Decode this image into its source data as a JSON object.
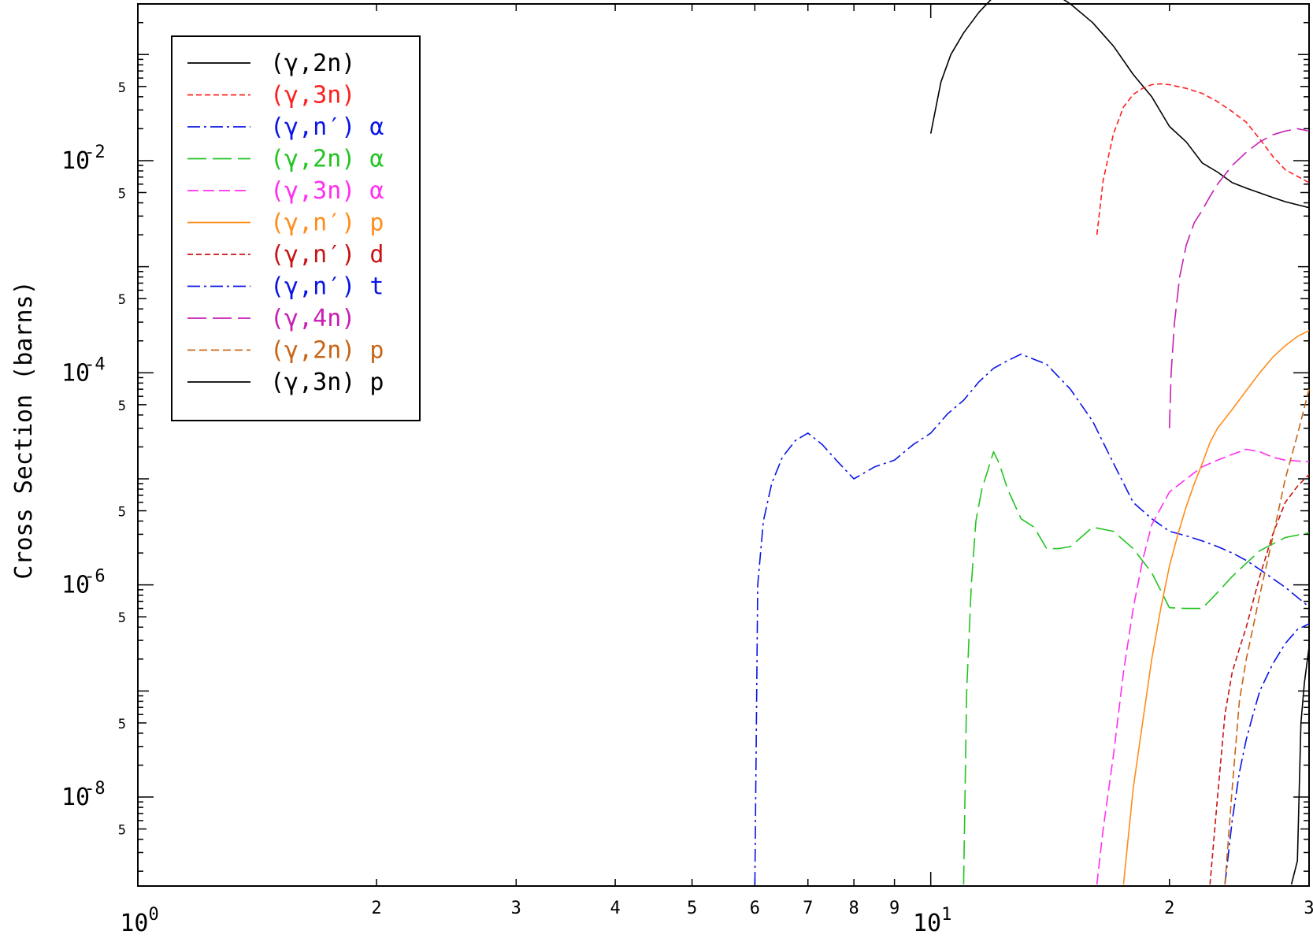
{
  "chart_data": {
    "type": "line",
    "title": "",
    "xlabel": "",
    "ylabel": "Cross Section (barns)",
    "x_scale": "log",
    "y_scale": "log",
    "xlim": [
      1,
      30
    ],
    "ylim": [
      1.45e-09,
      0.3
    ],
    "x_ticks": [
      {
        "value": 1,
        "base": "10",
        "exp": "0"
      },
      {
        "value": 2,
        "label": "2"
      },
      {
        "value": 3,
        "label": "3"
      },
      {
        "value": 4,
        "label": "4"
      },
      {
        "value": 5,
        "label": "5"
      },
      {
        "value": 6,
        "label": "6"
      },
      {
        "value": 7,
        "label": "7"
      },
      {
        "value": 8,
        "label": "8"
      },
      {
        "value": 9,
        "label": "9"
      },
      {
        "value": 10,
        "base": "10",
        "exp": "1"
      },
      {
        "value": 20,
        "label": "2"
      },
      {
        "value": 30,
        "label": "3"
      }
    ],
    "y_ticks": [
      {
        "value": 0.01,
        "base": "10",
        "exp": "-2"
      },
      {
        "value": 0.0001,
        "base": "10",
        "exp": "-4"
      },
      {
        "value": 1e-06,
        "base": "10",
        "exp": "-6"
      },
      {
        "value": 1e-08,
        "base": "10",
        "exp": "-8"
      }
    ],
    "y_minor_label": "5",
    "y_minor_label_values": [
      0.5,
      0.05,
      0.005,
      0.0005,
      5e-05,
      5e-06,
      5e-07,
      5e-08,
      5e-09
    ],
    "legend_position": "top-left",
    "series": [
      {
        "name": "(γ,2n)",
        "suffix": "",
        "color": "#000000",
        "dash": "solid",
        "x": [
          10,
          10.3,
          10.6,
          11,
          11.5,
          12,
          12.5,
          13,
          13.5,
          14,
          15,
          16,
          17,
          18,
          19,
          20,
          21,
          22,
          23,
          24,
          25,
          27,
          28,
          30
        ],
        "y": [
          0.018,
          0.055,
          0.1,
          0.16,
          0.25,
          0.35,
          0.45,
          0.48,
          0.47,
          0.42,
          0.3,
          0.2,
          0.12,
          0.065,
          0.04,
          0.021,
          0.015,
          0.0095,
          0.0078,
          0.0062,
          0.0055,
          0.0045,
          0.0041,
          0.0036
        ]
      },
      {
        "name": "(γ,3n)",
        "suffix": "",
        "color": "#ff1f1f",
        "dash": "short",
        "x": [
          16.2,
          16.5,
          17,
          17.5,
          18,
          18.5,
          19,
          19.5,
          20,
          21,
          22,
          23,
          24,
          25,
          26,
          27,
          28,
          30
        ],
        "y": [
          0.002,
          0.0065,
          0.018,
          0.032,
          0.042,
          0.048,
          0.052,
          0.053,
          0.052,
          0.048,
          0.043,
          0.036,
          0.029,
          0.023,
          0.016,
          0.011,
          0.0082,
          0.0062
        ]
      },
      {
        "name": "(γ,n′)",
        "suffix": " α",
        "color": "#0a14e6",
        "dash": "dashdot",
        "x": [
          6,
          6.05,
          6.15,
          6.3,
          6.5,
          6.75,
          7,
          7.3,
          7.6,
          8,
          8.5,
          9,
          9.5,
          10,
          10.5,
          11,
          11.5,
          12,
          12.5,
          13,
          14,
          15,
          16,
          17,
          18,
          19,
          20,
          21,
          22,
          23,
          24,
          25,
          26,
          28,
          30
        ],
        "y": [
          1.5e-09,
          1e-06,
          4e-06,
          9e-06,
          1.6e-05,
          2.3e-05,
          2.7e-05,
          2.1e-05,
          1.5e-05,
          1e-05,
          1.3e-05,
          1.5e-05,
          2.1e-05,
          2.7e-05,
          4.1e-05,
          5.5e-05,
          8.2e-05,
          0.00011,
          0.00013,
          0.00015,
          0.00012,
          7e-05,
          3.5e-05,
          1.4e-05,
          6e-06,
          4.2e-06,
          3.2e-06,
          2.9e-06,
          2.6e-06,
          2.3e-06,
          2e-06,
          1.7e-06,
          1.4e-06,
          9.5e-07,
          6.2e-07
        ]
      },
      {
        "name": "(γ,2n)",
        "suffix": " α",
        "color": "#22c422",
        "dash": "long",
        "x": [
          11,
          11.1,
          11.25,
          11.4,
          11.6,
          11.8,
          12,
          12.2,
          12.5,
          13,
          13.5,
          14,
          14.5,
          15,
          16,
          17,
          18,
          19,
          20,
          21,
          22,
          23,
          24,
          25,
          26,
          28,
          30
        ],
        "y": [
          1.5e-09,
          1e-07,
          1e-06,
          4e-06,
          8e-06,
          1.2e-05,
          1.8e-05,
          1.4e-05,
          8e-06,
          4.2e-06,
          3.5e-06,
          2.2e-06,
          2.2e-06,
          2.3e-06,
          3.5e-06,
          3.2e-06,
          2.2e-06,
          1.3e-06,
          6.1e-07,
          6e-07,
          6e-07,
          8.5e-07,
          1.2e-06,
          1.6e-06,
          2.1e-06,
          2.8e-06,
          3.1e-06
        ]
      },
      {
        "name": "(γ,3n)",
        "suffix": " α",
        "color": "#ff2ef0",
        "dash": "dash",
        "x": [
          16.2,
          16.5,
          17,
          17.5,
          18,
          18.5,
          19,
          20,
          21,
          22,
          23,
          24,
          25,
          26,
          27,
          28,
          30
        ],
        "y": [
          1.5e-09,
          5e-09,
          2.5e-08,
          1.5e-07,
          6e-07,
          1.7e-06,
          3.7e-06,
          7.5e-06,
          1e-05,
          1.3e-05,
          1.5e-05,
          1.7e-05,
          1.9e-05,
          1.8e-05,
          1.6e-05,
          1.5e-05,
          1.45e-05
        ]
      },
      {
        "name": "(γ,n′)",
        "suffix": " p",
        "color": "#ff8c1a",
        "dash": "solid",
        "x": [
          17.5,
          18,
          18.5,
          19,
          19.5,
          20,
          20.5,
          21,
          21.5,
          22,
          22.5,
          23,
          24,
          25,
          26,
          27,
          28,
          29,
          30
        ],
        "y": [
          1.5e-09,
          1.2e-08,
          5e-08,
          2e-07,
          6e-07,
          1.5e-06,
          3e-06,
          5.5e-06,
          9e-06,
          1.4e-05,
          2.2e-05,
          3e-05,
          4.5e-05,
          6.8e-05,
          0.0001,
          0.00014,
          0.00018,
          0.00022,
          0.00025
        ]
      },
      {
        "name": "(γ,n′)",
        "suffix": " d",
        "color": "#c81414",
        "dash": "short",
        "x": [
          22.5,
          23,
          23.5,
          24,
          24.5,
          25,
          25.5,
          26,
          27,
          28,
          29,
          30
        ],
        "y": [
          1.5e-09,
          1e-08,
          6e-08,
          1.5e-07,
          2.5e-07,
          4e-07,
          7e-07,
          1.2e-06,
          3e-06,
          6e-06,
          8.5e-06,
          1.1e-05
        ]
      },
      {
        "name": "(γ,n′)",
        "suffix": " t",
        "color": "#0a14e6",
        "dash": "dashdot",
        "x": [
          23.5,
          24,
          24.5,
          25,
          25.5,
          26,
          27,
          28,
          29,
          30
        ],
        "y": [
          1.5e-09,
          6e-09,
          1.7e-08,
          3.5e-08,
          6e-08,
          1e-07,
          1.8e-07,
          2.8e-07,
          3.8e-07,
          4.3e-07
        ]
      },
      {
        "name": "(γ,4n)",
        "suffix": "",
        "color": "#c81eb4",
        "dash": "long",
        "x": [
          20,
          20.1,
          20.3,
          20.6,
          21,
          21.5,
          22,
          22.5,
          23,
          24,
          25,
          26,
          27,
          28,
          29,
          30
        ],
        "y": [
          3e-05,
          0.0001,
          0.0003,
          0.0008,
          0.0016,
          0.0026,
          0.0034,
          0.0046,
          0.006,
          0.009,
          0.012,
          0.015,
          0.0175,
          0.019,
          0.02,
          0.019
        ]
      },
      {
        "name": "(γ,2n)",
        "suffix": " p",
        "color": "#c86414",
        "dash": "short-dash",
        "x": [
          23.5,
          24,
          24.5,
          25,
          25.5,
          26,
          27,
          28,
          29,
          30
        ],
        "y": [
          1.5e-09,
          1.2e-08,
          8e-08,
          2e-07,
          4e-07,
          8e-07,
          2.8e-06,
          1e-05,
          2.6e-05,
          7e-05
        ]
      },
      {
        "name": "(γ,3n)",
        "suffix": " p",
        "color": "#000000",
        "dash": "solid",
        "x": [
          28.5,
          29,
          29.3,
          29.6,
          30
        ],
        "y": [
          1.5e-09,
          2.5e-09,
          5e-08,
          1.2e-07,
          2.6e-07
        ]
      }
    ]
  }
}
